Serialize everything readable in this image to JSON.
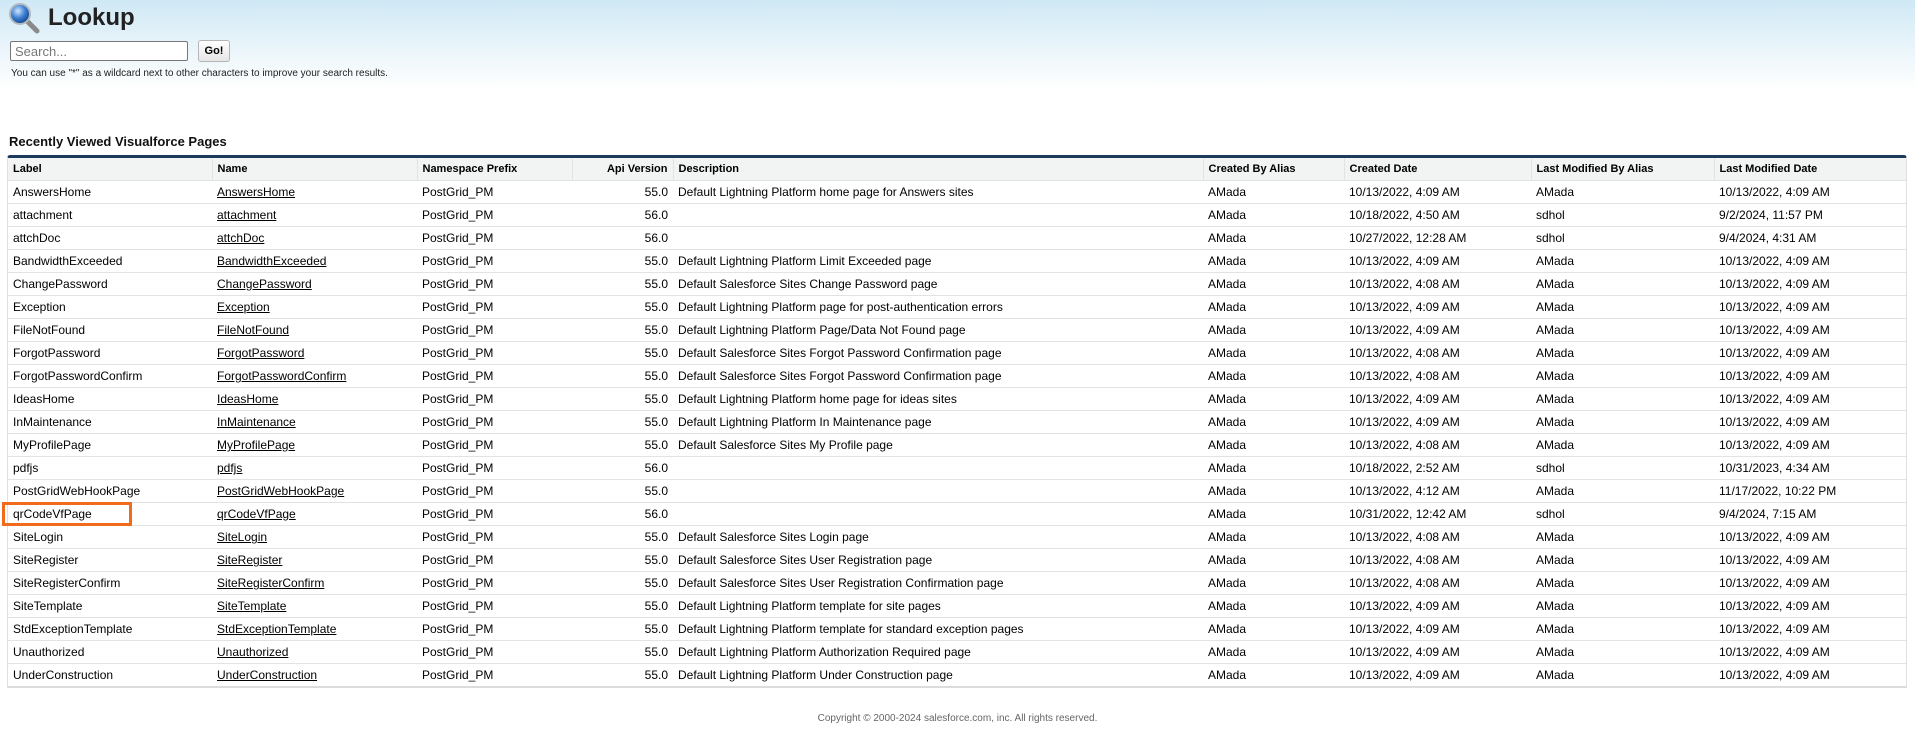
{
  "header": {
    "title": "Lookup",
    "icon": "magnifier-icon"
  },
  "search": {
    "placeholder": "Search...",
    "value": "",
    "go_label": "Go!",
    "hint": "You can use \"*\" as a wildcard next to other characters to improve your search results."
  },
  "section_title": "Recently Viewed Visualforce Pages",
  "columns": [
    "Label",
    "Name",
    "Namespace Prefix",
    "Api Version",
    "Description",
    "Created By Alias",
    "Created Date",
    "Last Modified By Alias",
    "Last Modified Date"
  ],
  "rows": [
    [
      "AnswersHome",
      "AnswersHome",
      "PostGrid_PM",
      "55.0",
      "Default Lightning Platform home page for Answers sites",
      "AMada",
      "10/13/2022, 4:09 AM",
      "AMada",
      "10/13/2022, 4:09 AM"
    ],
    [
      "attachment",
      "attachment",
      "PostGrid_PM",
      "56.0",
      "",
      "AMada",
      "10/18/2022, 4:50 AM",
      "sdhol",
      "9/2/2024, 11:57 PM"
    ],
    [
      "attchDoc",
      "attchDoc",
      "PostGrid_PM",
      "56.0",
      "",
      "AMada",
      "10/27/2022, 12:28 AM",
      "sdhol",
      "9/4/2024, 4:31 AM"
    ],
    [
      "BandwidthExceeded",
      "BandwidthExceeded",
      "PostGrid_PM",
      "55.0",
      "Default Lightning Platform Limit Exceeded page",
      "AMada",
      "10/13/2022, 4:09 AM",
      "AMada",
      "10/13/2022, 4:09 AM"
    ],
    [
      "ChangePassword",
      "ChangePassword",
      "PostGrid_PM",
      "55.0",
      "Default Salesforce Sites Change Password page",
      "AMada",
      "10/13/2022, 4:08 AM",
      "AMada",
      "10/13/2022, 4:09 AM"
    ],
    [
      "Exception",
      "Exception",
      "PostGrid_PM",
      "55.0",
      "Default Lightning Platform page for post-authentication errors",
      "AMada",
      "10/13/2022, 4:09 AM",
      "AMada",
      "10/13/2022, 4:09 AM"
    ],
    [
      "FileNotFound",
      "FileNotFound",
      "PostGrid_PM",
      "55.0",
      "Default Lightning Platform Page/Data Not Found page",
      "AMada",
      "10/13/2022, 4:09 AM",
      "AMada",
      "10/13/2022, 4:09 AM"
    ],
    [
      "ForgotPassword",
      "ForgotPassword",
      "PostGrid_PM",
      "55.0",
      "Default Salesforce Sites Forgot Password Confirmation page",
      "AMada",
      "10/13/2022, 4:08 AM",
      "AMada",
      "10/13/2022, 4:09 AM"
    ],
    [
      "ForgotPasswordConfirm",
      "ForgotPasswordConfirm",
      "PostGrid_PM",
      "55.0",
      "Default Salesforce Sites Forgot Password Confirmation page",
      "AMada",
      "10/13/2022, 4:08 AM",
      "AMada",
      "10/13/2022, 4:09 AM"
    ],
    [
      "IdeasHome",
      "IdeasHome",
      "PostGrid_PM",
      "55.0",
      "Default Lightning Platform home page for ideas sites",
      "AMada",
      "10/13/2022, 4:09 AM",
      "AMada",
      "10/13/2022, 4:09 AM"
    ],
    [
      "InMaintenance",
      "InMaintenance",
      "PostGrid_PM",
      "55.0",
      "Default Lightning Platform In Maintenance page",
      "AMada",
      "10/13/2022, 4:09 AM",
      "AMada",
      "10/13/2022, 4:09 AM"
    ],
    [
      "MyProfilePage",
      "MyProfilePage",
      "PostGrid_PM",
      "55.0",
      "Default Salesforce Sites My Profile page",
      "AMada",
      "10/13/2022, 4:08 AM",
      "AMada",
      "10/13/2022, 4:09 AM"
    ],
    [
      "pdfjs",
      "pdfjs",
      "PostGrid_PM",
      "56.0",
      "",
      "AMada",
      "10/18/2022, 2:52 AM",
      "sdhol",
      "10/31/2023, 4:34 AM"
    ],
    [
      "PostGridWebHookPage",
      "PostGridWebHookPage",
      "PostGrid_PM",
      "55.0",
      "",
      "AMada",
      "10/13/2022, 4:12 AM",
      "AMada",
      "11/17/2022, 10:22 PM"
    ],
    [
      "qrCodeVfPage",
      "qrCodeVfPage",
      "PostGrid_PM",
      "56.0",
      "",
      "AMada",
      "10/31/2022, 12:42 AM",
      "sdhol",
      "9/4/2024, 7:15 AM"
    ],
    [
      "SiteLogin",
      "SiteLogin",
      "PostGrid_PM",
      "55.0",
      "Default Salesforce Sites Login page",
      "AMada",
      "10/13/2022, 4:08 AM",
      "AMada",
      "10/13/2022, 4:09 AM"
    ],
    [
      "SiteRegister",
      "SiteRegister",
      "PostGrid_PM",
      "55.0",
      "Default Salesforce Sites User Registration page",
      "AMada",
      "10/13/2022, 4:08 AM",
      "AMada",
      "10/13/2022, 4:09 AM"
    ],
    [
      "SiteRegisterConfirm",
      "SiteRegisterConfirm",
      "PostGrid_PM",
      "55.0",
      "Default Salesforce Sites User Registration Confirmation page",
      "AMada",
      "10/13/2022, 4:08 AM",
      "AMada",
      "10/13/2022, 4:09 AM"
    ],
    [
      "SiteTemplate",
      "SiteTemplate",
      "PostGrid_PM",
      "55.0",
      "Default Lightning Platform template for site pages",
      "AMada",
      "10/13/2022, 4:09 AM",
      "AMada",
      "10/13/2022, 4:09 AM"
    ],
    [
      "StdExceptionTemplate",
      "StdExceptionTemplate",
      "PostGrid_PM",
      "55.0",
      "Default Lightning Platform template for standard exception pages",
      "AMada",
      "10/13/2022, 4:09 AM",
      "AMada",
      "10/13/2022, 4:09 AM"
    ],
    [
      "Unauthorized",
      "Unauthorized",
      "PostGrid_PM",
      "55.0",
      "Default Lightning Platform Authorization Required page",
      "AMada",
      "10/13/2022, 4:09 AM",
      "AMada",
      "10/13/2022, 4:09 AM"
    ],
    [
      "UnderConstruction",
      "UnderConstruction",
      "PostGrid_PM",
      "55.0",
      "Default Lightning Platform Under Construction page",
      "AMada",
      "10/13/2022, 4:09 AM",
      "AMada",
      "10/13/2022, 4:09 AM"
    ]
  ],
  "highlighted_row": "qrCodeVfPage",
  "colors": {
    "table_top_border": "#1b3a5c",
    "highlight": "#f26a1b"
  },
  "footer": "Copyright © 2000-2024 salesforce.com, inc. All rights reserved."
}
